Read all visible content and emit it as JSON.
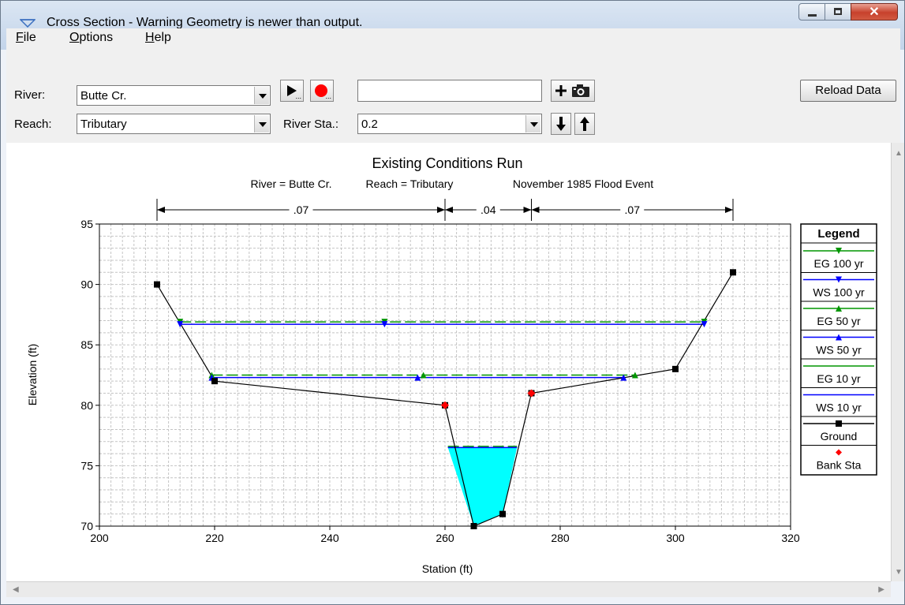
{
  "window": {
    "title": "Cross Section - Warning Geometry is newer than output."
  },
  "menu": {
    "items": [
      {
        "label": "File",
        "key": "F",
        "rest": "ile"
      },
      {
        "label": "Options",
        "key": "O",
        "rest": "ptions"
      },
      {
        "label": "Help",
        "key": "H",
        "rest": "elp"
      }
    ]
  },
  "toolbar": {
    "river_label": "River:",
    "river_value": "Butte Cr.",
    "reach_label": "Reach:",
    "reach_value": "Tributary",
    "river_sta_label": "River Sta.:",
    "river_sta_value": "0.2",
    "reload_label": "Reload Data",
    "search_value": ""
  },
  "colors": {
    "eg": "#009600",
    "ws": "#0000ff",
    "ground": "#000000",
    "bank": "#ff0000",
    "water_fill": "#00ffff"
  },
  "chart_data": {
    "type": "line",
    "title": "Existing Conditions Run",
    "subtitle_river": "River = Butte Cr.",
    "subtitle_reach": "Reach = Tributary",
    "subtitle_event": "November 1985 Flood Event",
    "xlabel": "Station (ft)",
    "ylabel": "Elevation (ft)",
    "xlim": [
      200,
      320
    ],
    "ylim": [
      70,
      95
    ],
    "xticks": [
      200,
      220,
      240,
      260,
      280,
      300,
      320
    ],
    "yticks": [
      70,
      75,
      80,
      85,
      90,
      95
    ],
    "grid": true,
    "manning": [
      {
        "from": 210,
        "to": 260,
        "label": ".07"
      },
      {
        "from": 260,
        "to": 275,
        "label": ".04"
      },
      {
        "from": 275,
        "to": 310,
        "label": ".07"
      }
    ],
    "legend_title": "Legend",
    "legend_position": "right",
    "series": [
      {
        "name": "EG 100 yr",
        "kind": "eg",
        "elev": 86.9,
        "x": [
          214,
          305
        ]
      },
      {
        "name": "WS 100 yr",
        "kind": "ws",
        "elev": 86.7,
        "x": [
          214,
          305
        ]
      },
      {
        "name": "EG 50 yr",
        "kind": "eg",
        "elev": 82.5,
        "x": [
          219.5,
          293
        ]
      },
      {
        "name": "WS 50 yr",
        "kind": "ws",
        "elev": 82.3,
        "x": [
          219.5,
          291
        ]
      },
      {
        "name": "EG 10 yr",
        "kind": "eg",
        "elev": 76.6,
        "x": [
          260.5,
          272.5
        ]
      },
      {
        "name": "WS 10 yr",
        "kind": "ws",
        "elev": 76.5,
        "x": [
          260.5,
          272.5
        ]
      },
      {
        "name": "Ground",
        "kind": "ground",
        "points": [
          [
            210,
            90
          ],
          [
            220,
            82
          ],
          [
            260,
            80
          ],
          [
            265,
            70
          ],
          [
            270,
            71
          ],
          [
            275,
            81
          ],
          [
            300,
            83
          ],
          [
            310,
            91
          ]
        ]
      },
      {
        "name": "Bank Sta",
        "kind": "bank",
        "points": [
          [
            260,
            80
          ],
          [
            275,
            81
          ]
        ]
      }
    ],
    "water_polygon": [
      [
        260.5,
        76.5
      ],
      [
        265,
        70
      ],
      [
        270,
        71
      ],
      [
        272.5,
        76.5
      ]
    ]
  }
}
